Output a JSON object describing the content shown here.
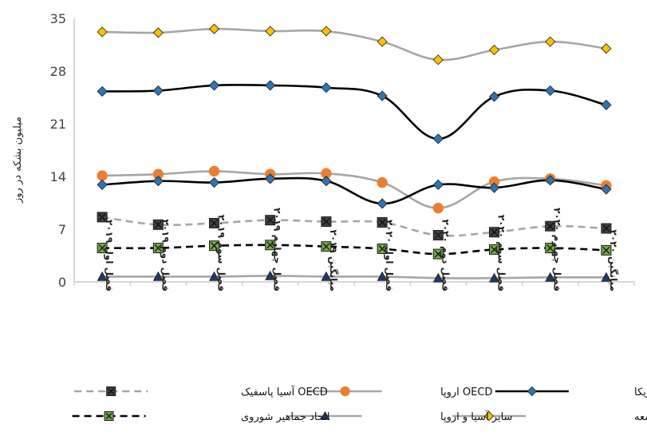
{
  "chart_data": {
    "type": "line",
    "ylabel": "میلیون بشکه در روز",
    "ylim": [
      0,
      35
    ],
    "yticks": [
      0,
      7,
      14,
      21,
      28,
      35
    ],
    "grid": false,
    "legend_position": "bottom",
    "categories": [
      "فصل اول ۲۰۱۹",
      "فصل دوم ۲۰۱۹",
      "فصل سوم ۲۰۱۹",
      "فصل چهارم ۲۰۱۹",
      "میانگین ۲۰۱۹",
      "فصل اول ۲۰۲۰",
      "فصل دوم ۲۰۲۰",
      "فصل سوم ۲۰۲۰",
      "فصل چهارم ۲۰۲۰",
      "میانگین ۲۰۲۰"
    ],
    "series": [
      {
        "name": "کشورهای درحال توسعه",
        "color": "#a6a6a6",
        "dash": "solid",
        "marker": "diamond",
        "marker_color": "#ffc000",
        "values": [
          33.2,
          33.1,
          33.6,
          33.3,
          33.3,
          31.9,
          29.5,
          30.8,
          31.9,
          31.0
        ]
      },
      {
        "name": "OECD آمریکا",
        "color": "#000000",
        "dash": "solid",
        "marker": "diamond",
        "marker_color": "#2e75b6",
        "values": [
          25.3,
          25.4,
          26.1,
          26.1,
          25.8,
          24.7,
          19.0,
          24.6,
          25.4,
          23.5
        ]
      },
      {
        "name": "OECD اروپا",
        "color": "#a6a6a6",
        "dash": "solid",
        "marker": "circle",
        "marker_color": "#ed7d31",
        "values": [
          14.1,
          14.3,
          14.7,
          14.3,
          14.4,
          13.2,
          9.8,
          13.3,
          13.7,
          12.8
        ]
      },
      {
        "name": "OECD آمریکا",
        "color": "#000000",
        "dash": "solid",
        "marker": "diamond",
        "marker_color": "#2e75b6",
        "legend": false,
        "values": [
          12.9,
          13.4,
          13.2,
          13.7,
          13.4,
          10.4,
          12.9,
          12.5,
          13.5,
          12.3
        ]
      },
      {
        "name": "OECD آسیا پاسفیک",
        "color": "#a6a6a6",
        "dash": "dashed",
        "marker": "square-x",
        "marker_color": "#404040",
        "values": [
          8.6,
          7.6,
          7.8,
          8.2,
          8.0,
          7.9,
          6.2,
          6.6,
          7.4,
          7.1
        ]
      },
      {
        "name": "اتحاد جماهیر شوروی",
        "color": "#000000",
        "dash": "dashed",
        "marker": "square-x",
        "marker_color": "#70ad47",
        "values": [
          4.5,
          4.5,
          4.8,
          4.9,
          4.7,
          4.4,
          3.7,
          4.3,
          4.5,
          4.2
        ]
      },
      {
        "name": "سایر آسیا و اروپا",
        "color": "#a6a6a6",
        "dash": "solid",
        "marker": "triangle",
        "marker_color": "#1f3864",
        "values": [
          0.7,
          0.7,
          0.7,
          0.8,
          0.7,
          0.7,
          0.5,
          0.5,
          0.6,
          0.6
        ]
      }
    ],
    "legend": [
      [
        "OECD آمریکا",
        "OECD اروپا",
        "OECD آسیا پاسفیک"
      ],
      [
        "کشورهای درحال توسعه",
        "سایر آسیا و اروپا",
        "اتحاد جماهیر شوروی"
      ]
    ]
  }
}
